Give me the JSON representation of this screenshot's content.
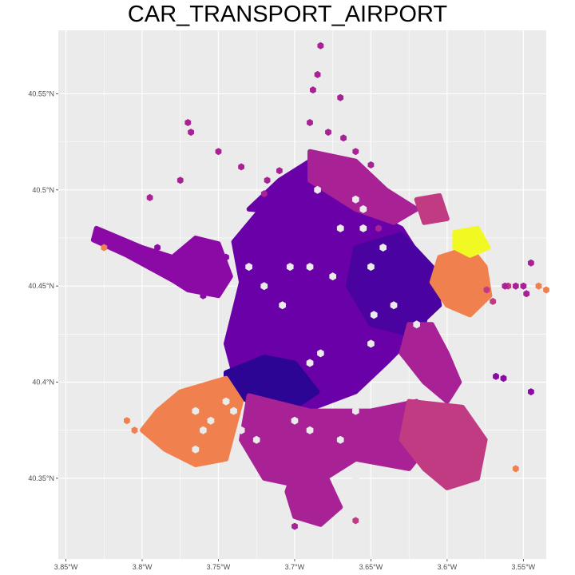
{
  "title": "CAR_TRANSPORT_AIRPORT",
  "chart_data": {
    "type": "heatmap",
    "subtype": "hexbin-map",
    "title": "CAR_TRANSPORT_AIRPORT",
    "xlabel": "",
    "ylabel": "",
    "grid": true,
    "legend": "none",
    "background": "#ebebeb",
    "gridline_color": "#ffffff",
    "x_range": [
      -3.855,
      -3.535
    ],
    "y_range": [
      40.308,
      40.583
    ],
    "x_ticks": [
      {
        "value": -3.85,
        "label": "3.85°W"
      },
      {
        "value": -3.8,
        "label": "3.8°W"
      },
      {
        "value": -3.75,
        "label": "3.75°W"
      },
      {
        "value": -3.7,
        "label": "3.7°W"
      },
      {
        "value": -3.65,
        "label": "3.65°W"
      },
      {
        "value": -3.6,
        "label": "3.6°W"
      },
      {
        "value": -3.55,
        "label": "3.55°W"
      }
    ],
    "y_ticks": [
      {
        "value": 40.35,
        "label": "40.35°N"
      },
      {
        "value": 40.4,
        "label": "40.4°N"
      },
      {
        "value": 40.45,
        "label": "40.45°N"
      },
      {
        "value": 40.5,
        "label": "40.5°N"
      },
      {
        "value": 40.55,
        "label": "40.55°N"
      }
    ],
    "color_scale": "plasma",
    "palette": {
      "deep": "#2d0594",
      "indigo": "#4a03a0",
      "violet": "#6a00a8",
      "purple": "#8b0aa5",
      "magenta": "#a82296",
      "pink": "#c13b82",
      "coral": "#e0686a",
      "orange": "#f0814f",
      "yellow": "#f0f921"
    },
    "regions": [
      {
        "name": "city-center",
        "level": 0.12,
        "color": "violet",
        "polygon": [
          [
            -3.745,
            40.42
          ],
          [
            -3.735,
            40.452
          ],
          [
            -3.74,
            40.473
          ],
          [
            -3.72,
            40.492
          ],
          [
            -3.685,
            40.503
          ],
          [
            -3.655,
            40.49
          ],
          [
            -3.63,
            40.48
          ],
          [
            -3.61,
            40.455
          ],
          [
            -3.615,
            40.43
          ],
          [
            -3.64,
            40.41
          ],
          [
            -3.66,
            40.395
          ],
          [
            -3.69,
            40.386
          ],
          [
            -3.72,
            40.392
          ],
          [
            -3.74,
            40.405
          ]
        ]
      },
      {
        "name": "north-center",
        "level": 0.14,
        "color": "violet",
        "polygon": [
          [
            -3.73,
            40.49
          ],
          [
            -3.71,
            40.505
          ],
          [
            -3.69,
            40.515
          ],
          [
            -3.67,
            40.51
          ],
          [
            -3.66,
            40.495
          ],
          [
            -3.7,
            40.488
          ]
        ]
      },
      {
        "name": "west-block",
        "level": 0.18,
        "color": "purple",
        "polygon": [
          [
            -3.83,
            40.48
          ],
          [
            -3.8,
            40.47
          ],
          [
            -3.78,
            40.465
          ],
          [
            -3.765,
            40.475
          ],
          [
            -3.75,
            40.472
          ],
          [
            -3.742,
            40.455
          ],
          [
            -3.75,
            40.445
          ],
          [
            -3.77,
            40.448
          ],
          [
            -3.78,
            40.453
          ],
          [
            -3.81,
            40.466
          ],
          [
            -3.832,
            40.474
          ]
        ]
      },
      {
        "name": "east-center",
        "level": 0.08,
        "color": "indigo",
        "polygon": [
          [
            -3.66,
            40.47
          ],
          [
            -3.63,
            40.477
          ],
          [
            -3.61,
            40.46
          ],
          [
            -3.605,
            40.44
          ],
          [
            -3.625,
            40.425
          ],
          [
            -3.65,
            40.43
          ],
          [
            -3.665,
            40.45
          ]
        ]
      },
      {
        "name": "south-west-core",
        "level": 0.02,
        "color": "deep",
        "polygon": [
          [
            -3.745,
            40.405
          ],
          [
            -3.72,
            40.413
          ],
          [
            -3.7,
            40.41
          ],
          [
            -3.685,
            40.395
          ],
          [
            -3.7,
            40.387
          ],
          [
            -3.73,
            40.39
          ],
          [
            -3.745,
            40.397
          ]
        ]
      },
      {
        "name": "north-east-ring",
        "level": 0.34,
        "color": "magenta",
        "polygon": [
          [
            -3.69,
            40.52
          ],
          [
            -3.66,
            40.515
          ],
          [
            -3.64,
            40.5
          ],
          [
            -3.62,
            40.49
          ],
          [
            -3.635,
            40.483
          ],
          [
            -3.66,
            40.49
          ],
          [
            -3.69,
            40.505
          ]
        ]
      },
      {
        "name": "east-ring",
        "level": 0.36,
        "color": "magenta",
        "polygon": [
          [
            -3.625,
            40.43
          ],
          [
            -3.61,
            40.43
          ],
          [
            -3.6,
            40.415
          ],
          [
            -3.592,
            40.4
          ],
          [
            -3.6,
            40.39
          ],
          [
            -3.615,
            40.4
          ],
          [
            -3.63,
            40.415
          ]
        ]
      },
      {
        "name": "south-ring",
        "level": 0.38,
        "color": "magenta",
        "polygon": [
          [
            -3.73,
            40.393
          ],
          [
            -3.69,
            40.385
          ],
          [
            -3.65,
            40.385
          ],
          [
            -3.62,
            40.39
          ],
          [
            -3.61,
            40.37
          ],
          [
            -3.625,
            40.355
          ],
          [
            -3.66,
            40.36
          ],
          [
            -3.69,
            40.345
          ],
          [
            -3.72,
            40.35
          ],
          [
            -3.735,
            40.37
          ]
        ]
      },
      {
        "name": "south-tail",
        "level": 0.34,
        "color": "magenta",
        "polygon": [
          [
            -3.7,
            40.355
          ],
          [
            -3.68,
            40.352
          ],
          [
            -3.67,
            40.335
          ],
          [
            -3.683,
            40.326
          ],
          [
            -3.7,
            40.33
          ],
          [
            -3.705,
            40.343
          ]
        ]
      },
      {
        "name": "southeast-block",
        "level": 0.44,
        "color": "pink",
        "polygon": [
          [
            -3.625,
            40.39
          ],
          [
            -3.59,
            40.387
          ],
          [
            -3.575,
            40.37
          ],
          [
            -3.58,
            40.35
          ],
          [
            -3.6,
            40.345
          ],
          [
            -3.615,
            40.355
          ],
          [
            -3.63,
            40.37
          ]
        ]
      },
      {
        "name": "southwest-block",
        "level": 0.66,
        "color": "orange",
        "polygon": [
          [
            -3.775,
            40.395
          ],
          [
            -3.745,
            40.402
          ],
          [
            -3.735,
            40.39
          ],
          [
            -3.74,
            40.375
          ],
          [
            -3.745,
            40.36
          ],
          [
            -3.765,
            40.357
          ],
          [
            -3.785,
            40.365
          ],
          [
            -3.8,
            40.375
          ],
          [
            -3.79,
            40.385
          ]
        ]
      },
      {
        "name": "northeast-airport-ring",
        "level": 0.66,
        "color": "orange",
        "polygon": [
          [
            -3.605,
            40.465
          ],
          [
            -3.585,
            40.47
          ],
          [
            -3.575,
            40.46
          ],
          [
            -3.572,
            40.445
          ],
          [
            -3.585,
            40.435
          ],
          [
            -3.6,
            40.44
          ],
          [
            -3.61,
            40.452
          ]
        ]
      },
      {
        "name": "airport",
        "level": 1.0,
        "color": "yellow",
        "polygon": [
          [
            -3.595,
            40.478
          ],
          [
            -3.58,
            40.48
          ],
          [
            -3.573,
            40.47
          ],
          [
            -3.585,
            40.466
          ],
          [
            -3.595,
            40.47
          ]
        ]
      },
      {
        "name": "north-east-spot",
        "level": 0.42,
        "color": "pink",
        "polygon": [
          [
            -3.62,
            40.495
          ],
          [
            -3.605,
            40.497
          ],
          [
            -3.6,
            40.485
          ],
          [
            -3.615,
            40.483
          ]
        ]
      }
    ],
    "cells": [
      {
        "x": -3.683,
        "y": 40.575,
        "level": 0.38,
        "color": "magenta"
      },
      {
        "x": -3.685,
        "y": 40.56,
        "level": 0.38,
        "color": "magenta"
      },
      {
        "x": -3.688,
        "y": 40.552,
        "level": 0.38,
        "color": "magenta"
      },
      {
        "x": -3.69,
        "y": 40.535,
        "level": 0.36,
        "color": "magenta"
      },
      {
        "x": -3.67,
        "y": 40.548,
        "level": 0.38,
        "color": "magenta"
      },
      {
        "x": -3.678,
        "y": 40.53,
        "level": 0.38,
        "color": "magenta"
      },
      {
        "x": -3.66,
        "y": 40.52,
        "level": 0.36,
        "color": "magenta"
      },
      {
        "x": -3.65,
        "y": 40.513,
        "level": 0.38,
        "color": "magenta"
      },
      {
        "x": -3.668,
        "y": 40.527,
        "level": 0.36,
        "color": "magenta"
      },
      {
        "x": -3.735,
        "y": 40.512,
        "level": 0.38,
        "color": "magenta"
      },
      {
        "x": -3.718,
        "y": 40.505,
        "level": 0.36,
        "color": "magenta"
      },
      {
        "x": -3.71,
        "y": 40.51,
        "level": 0.38,
        "color": "magenta"
      },
      {
        "x": -3.75,
        "y": 40.52,
        "level": 0.36,
        "color": "magenta"
      },
      {
        "x": -3.77,
        "y": 40.535,
        "level": 0.36,
        "color": "magenta"
      },
      {
        "x": -3.768,
        "y": 40.53,
        "level": 0.36,
        "color": "magenta"
      },
      {
        "x": -3.775,
        "y": 40.505,
        "level": 0.38,
        "color": "magenta"
      },
      {
        "x": -3.795,
        "y": 40.496,
        "level": 0.36,
        "color": "magenta"
      },
      {
        "x": -3.72,
        "y": 40.498,
        "level": 0.36,
        "color": "magenta"
      },
      {
        "x": -3.79,
        "y": 40.47,
        "level": 0.2,
        "color": "purple"
      },
      {
        "x": -3.83,
        "y": 40.478,
        "level": 0.24,
        "color": "purple"
      },
      {
        "x": -3.825,
        "y": 40.47,
        "level": 0.66,
        "color": "orange"
      },
      {
        "x": -3.76,
        "y": 40.445,
        "level": 0.2,
        "color": "purple"
      },
      {
        "x": -3.745,
        "y": 40.465,
        "level": 0.2,
        "color": "purple"
      },
      {
        "x": -3.645,
        "y": 40.48,
        "level": 0.36,
        "color": "magenta"
      },
      {
        "x": -3.605,
        "y": 40.49,
        "level": 0.44,
        "color": "pink"
      },
      {
        "x": -3.615,
        "y": 40.495,
        "level": 0.42,
        "color": "pink"
      },
      {
        "x": -3.56,
        "y": 40.45,
        "level": 0.44,
        "color": "pink"
      },
      {
        "x": -3.574,
        "y": 40.448,
        "level": 0.44,
        "color": "pink"
      },
      {
        "x": -3.57,
        "y": 40.442,
        "level": 0.46,
        "color": "pink"
      },
      {
        "x": -3.555,
        "y": 40.45,
        "level": 0.3,
        "color": "magenta"
      },
      {
        "x": -3.55,
        "y": 40.45,
        "level": 0.36,
        "color": "magenta"
      },
      {
        "x": -3.54,
        "y": 40.45,
        "level": 0.66,
        "color": "orange"
      },
      {
        "x": -3.535,
        "y": 40.448,
        "level": 0.66,
        "color": "orange"
      },
      {
        "x": -3.545,
        "y": 40.462,
        "level": 0.3,
        "color": "magenta"
      },
      {
        "x": -3.548,
        "y": 40.446,
        "level": 0.36,
        "color": "magenta"
      },
      {
        "x": -3.562,
        "y": 40.45,
        "level": 0.38,
        "color": "magenta"
      },
      {
        "x": -3.545,
        "y": 40.395,
        "level": 0.2,
        "color": "purple"
      },
      {
        "x": -3.563,
        "y": 40.402,
        "level": 0.2,
        "color": "purple"
      },
      {
        "x": -3.568,
        "y": 40.403,
        "level": 0.2,
        "color": "purple"
      },
      {
        "x": -3.555,
        "y": 40.355,
        "level": 0.66,
        "color": "orange"
      },
      {
        "x": -3.583,
        "y": 40.36,
        "level": 0.44,
        "color": "pink"
      },
      {
        "x": -3.585,
        "y": 40.353,
        "level": 0.44,
        "color": "pink"
      },
      {
        "x": -3.66,
        "y": 40.328,
        "level": 0.44,
        "color": "pink"
      },
      {
        "x": -3.603,
        "y": 40.415,
        "level": 0.36,
        "color": "magenta"
      },
      {
        "x": -3.598,
        "y": 40.41,
        "level": 0.36,
        "color": "magenta"
      },
      {
        "x": -3.81,
        "y": 40.38,
        "level": 0.66,
        "color": "orange"
      },
      {
        "x": -3.805,
        "y": 40.375,
        "level": 0.66,
        "color": "orange"
      },
      {
        "x": -3.7,
        "y": 40.325,
        "level": 0.36,
        "color": "magenta"
      },
      {
        "x": -3.683,
        "y": 40.33,
        "level": 0.36,
        "color": "magenta"
      }
    ],
    "holes": [
      [
        -3.703,
        40.46
      ],
      [
        -3.69,
        40.46
      ],
      [
        -3.675,
        40.455
      ],
      [
        -3.72,
        40.45
      ],
      [
        -3.708,
        40.44
      ],
      [
        -3.65,
        40.46
      ],
      [
        -3.635,
        40.44
      ],
      [
        -3.648,
        40.435
      ],
      [
        -3.62,
        40.43
      ],
      [
        -3.69,
        40.41
      ],
      [
        -3.683,
        40.415
      ],
      [
        -3.65,
        40.42
      ],
      [
        -3.63,
        40.41
      ],
      [
        -3.74,
        40.385
      ],
      [
        -3.735,
        40.375
      ],
      [
        -3.725,
        40.37
      ],
      [
        -3.67,
        40.37
      ],
      [
        -3.66,
        40.385
      ],
      [
        -3.66,
        40.35
      ],
      [
        -3.7,
        40.38
      ],
      [
        -3.73,
        40.46
      ],
      [
        -3.67,
        40.48
      ],
      [
        -3.655,
        40.48
      ],
      [
        -3.642,
        40.47
      ],
      [
        -3.655,
        40.49
      ],
      [
        -3.64,
        40.395
      ],
      [
        -3.69,
        40.375
      ],
      [
        -3.745,
        40.39
      ],
      [
        -3.765,
        40.385
      ],
      [
        -3.76,
        40.375
      ],
      [
        -3.765,
        40.365
      ],
      [
        -3.755,
        40.38
      ],
      [
        -3.66,
        40.495
      ],
      [
        -3.685,
        40.5
      ]
    ]
  }
}
